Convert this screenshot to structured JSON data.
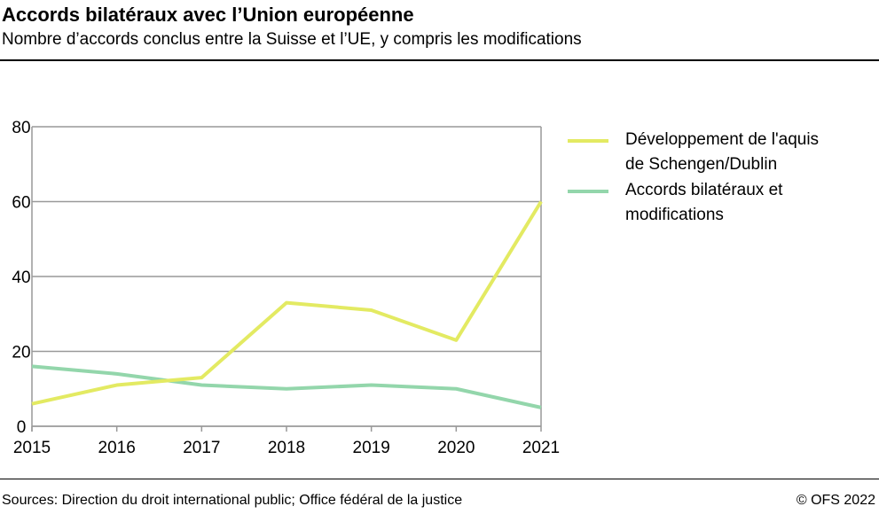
{
  "title": "Accords bilatéraux avec l’Union européenne",
  "subtitle": "Nombre d’accords conclus entre la Suisse et l’UE, y compris les modifications",
  "source": "Sources: Direction du droit international public; Office fédéral de la justice",
  "copyright": "© OFS 2022",
  "chart_data": {
    "type": "line",
    "categories": [
      "2015",
      "2016",
      "2017",
      "2018",
      "2019",
      "2020",
      "2021"
    ],
    "ylim": [
      0,
      80
    ],
    "yticks": [
      "0",
      "20",
      "40",
      "60",
      "80"
    ],
    "grid": true,
    "legend_position": "right",
    "series": [
      {
        "name": "Développement de l'aquis de Schengen/Dublin",
        "name_lines": [
          "Développement de l'aquis",
          "de Schengen/Dublin"
        ],
        "color": "#e3ea62",
        "values": [
          6,
          11,
          13,
          33,
          31,
          23,
          60
        ]
      },
      {
        "name": "Accords bilatéraux et modifications",
        "name_lines": [
          "Accords bilatéraux et",
          "modifications"
        ],
        "color": "#93d6ab",
        "values": [
          16,
          14,
          11,
          10,
          11,
          10,
          5
        ]
      }
    ]
  }
}
